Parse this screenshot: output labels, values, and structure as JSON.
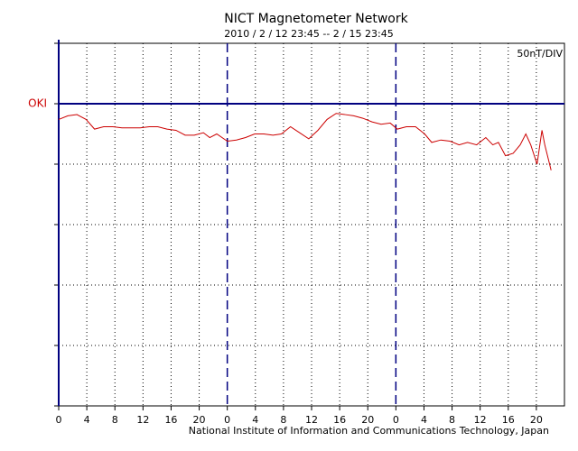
{
  "chart_data": {
    "type": "line",
    "title": "NICT Magnetometer Network",
    "subtitle": "2010 / 2 / 12   23:45 --  2 / 15   23:45",
    "annotation": "50nT/DIV",
    "footer": "National Institute of Information and Communications Technology, Japan",
    "x": [
      0,
      1.3,
      2.6,
      3.9,
      5.1,
      6.4,
      7.7,
      9.0,
      10.3,
      11.6,
      12.9,
      14.1,
      15.4,
      16.7,
      18.0,
      19.3,
      20.6,
      21.5,
      22.5,
      24.0,
      25.3,
      26.6,
      27.9,
      29.2,
      30.5,
      31.7,
      33.0,
      34.3,
      35.6,
      36.9,
      38.2,
      39.5,
      40.8,
      42.0,
      43.3,
      44.6,
      45.9,
      47.2,
      48.2,
      49.5,
      50.8,
      52.1,
      53.1,
      54.4,
      55.7,
      57.0,
      58.2,
      59.5,
      60.8,
      61.8,
      62.6,
      63.6,
      64.7,
      65.7,
      66.5,
      67.2,
      68.1,
      68.8,
      69.2,
      70.1
    ],
    "series": [
      {
        "name": "OKI",
        "color": "#cc0000",
        "values": [
          -13,
          -10,
          -9,
          -13,
          -21,
          -19,
          -19,
          -20,
          -20,
          -20,
          -19,
          -19,
          -21,
          -22,
          -26,
          -26,
          -24,
          -28,
          -25,
          -31,
          -30,
          -28,
          -25,
          -25,
          -26,
          -25,
          -19,
          -24,
          -29,
          -22,
          -13,
          -8,
          -9,
          -10,
          -12,
          -15,
          -17,
          -16,
          -21,
          -19,
          -19,
          -25,
          -32,
          -30,
          -31,
          -34,
          -32,
          -34,
          -28,
          -34,
          -32,
          -43,
          -41,
          -34,
          -25,
          -34,
          -50,
          -22,
          -34,
          -55
        ]
      }
    ],
    "xlim": [
      0,
      72
    ],
    "xticks": [
      0,
      4,
      8,
      12,
      16,
      20,
      {
        "value": 24,
        "label": "0"
      },
      {
        "value": 28,
        "label": "4"
      },
      {
        "value": 32,
        "label": "8"
      },
      {
        "value": 36,
        "label": "12"
      },
      {
        "value": 40,
        "label": "16"
      },
      {
        "value": 44,
        "label": "20"
      },
      {
        "value": 48,
        "label": "0"
      },
      {
        "value": 52,
        "label": "4"
      },
      {
        "value": 56,
        "label": "8"
      },
      {
        "value": 60,
        "label": "12"
      },
      {
        "value": 64,
        "label": "16"
      },
      {
        "value": 68,
        "label": "20"
      }
    ],
    "ylim": [
      -250,
      50
    ],
    "yticks": [
      -250,
      -200,
      -150,
      -100,
      -50,
      0,
      50
    ],
    "grid": true,
    "axis_color": "#000080"
  }
}
